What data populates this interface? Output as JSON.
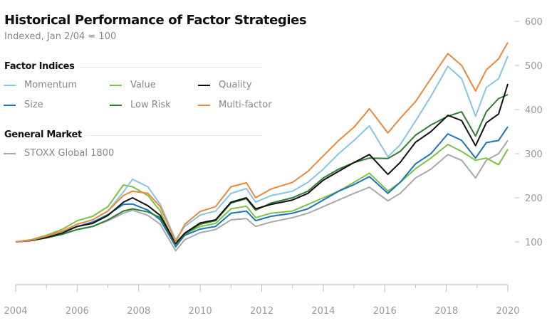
{
  "chart_data": {
    "type": "line",
    "title": "Historical Performance of Factor Strategies",
    "subtitle": "Indexed, Jan 2/04 = 100",
    "legend": {
      "placement": "top-left",
      "groups": [
        {
          "heading": "Factor Indices",
          "entries": [
            "Momentum",
            "Value",
            "Quality",
            "Size",
            "Low Risk",
            "Multi-factor"
          ]
        },
        {
          "heading": "General Market",
          "entries": [
            "STOXX Global 1800"
          ]
        }
      ]
    },
    "xlim": [
      2004,
      2020
    ],
    "ylim": [
      100,
      600
    ],
    "y_axis_side": "right",
    "grid": false,
    "x_ticks": [
      "2004",
      "2006",
      "2008",
      "2010",
      "2012",
      "2014",
      "2016",
      "2018",
      "2020"
    ],
    "y_ticks": [
      "100",
      "200",
      "300",
      "400",
      "500",
      "600"
    ],
    "x": [
      2004,
      2004.5,
      2005,
      2005.5,
      2006,
      2006.5,
      2007,
      2007.5,
      2007.8,
      2008.3,
      2008.7,
      2009.2,
      2009.5,
      2010,
      2010.5,
      2011,
      2011.5,
      2011.8,
      2012.3,
      2013,
      2013.5,
      2014,
      2014.5,
      2015,
      2015.5,
      2016.1,
      2016.5,
      2017,
      2017.5,
      2018.05,
      2018.5,
      2018.95,
      2019.3,
      2019.7,
      2020
    ],
    "series": [
      {
        "name": "STOXX Global 1800",
        "color": "#a9a9a9",
        "values": [
          100,
          103,
          110,
          118,
          128,
          135,
          148,
          165,
          172,
          160,
          140,
          80,
          105,
          121,
          128,
          150,
          153,
          135,
          145,
          155,
          165,
          180,
          195,
          210,
          224,
          193,
          210,
          245,
          265,
          298,
          285,
          245,
          285,
          300,
          330
        ]
      },
      {
        "name": "Value",
        "color": "#7dc242",
        "values": [
          100,
          105,
          115,
          128,
          148,
          158,
          180,
          229,
          225,
          205,
          170,
          88,
          118,
          135,
          142,
          175,
          181,
          155,
          165,
          170,
          185,
          200,
          215,
          235,
          256,
          215,
          235,
          266,
          290,
          321,
          305,
          285,
          290,
          275,
          310
        ]
      },
      {
        "name": "Size",
        "color": "#1b75bb",
        "values": [
          100,
          104,
          112,
          122,
          135,
          145,
          162,
          185,
          186,
          172,
          150,
          90,
          115,
          129,
          135,
          165,
          170,
          148,
          158,
          165,
          175,
          195,
          215,
          230,
          248,
          210,
          235,
          277,
          300,
          345,
          330,
          290,
          325,
          330,
          361
        ]
      },
      {
        "name": "Low Risk",
        "color": "#2e7d32",
        "values": [
          100,
          103,
          109,
          117,
          128,
          135,
          150,
          170,
          175,
          168,
          155,
          95,
          118,
          140,
          148,
          188,
          198,
          172,
          188,
          200,
          215,
          245,
          265,
          280,
          290,
          289,
          305,
          342,
          365,
          385,
          395,
          340,
          395,
          425,
          434
        ]
      },
      {
        "name": "Quality",
        "color": "#111111",
        "values": [
          100,
          103,
          110,
          120,
          135,
          142,
          160,
          190,
          200,
          182,
          160,
          97,
          120,
          143,
          150,
          190,
          200,
          175,
          185,
          195,
          210,
          240,
          260,
          280,
          298,
          253,
          280,
          326,
          350,
          387,
          375,
          318,
          370,
          390,
          458
        ]
      },
      {
        "name": "Momentum",
        "color": "#85c5e8",
        "values": [
          100,
          104,
          113,
          123,
          140,
          150,
          170,
          213,
          242,
          225,
          185,
          105,
          135,
          161,
          170,
          210,
          221,
          190,
          205,
          215,
          235,
          265,
          300,
          330,
          363,
          293,
          320,
          374,
          430,
          498,
          470,
          385,
          450,
          470,
          521
        ]
      },
      {
        "name": "Multi-factor",
        "color": "#e8893c",
        "values": [
          100,
          104,
          113,
          124,
          140,
          150,
          170,
          205,
          215,
          210,
          180,
          100,
          140,
          169,
          180,
          225,
          234,
          200,
          220,
          235,
          260,
          295,
          330,
          360,
          402,
          347,
          380,
          418,
          470,
          527,
          500,
          442,
          490,
          515,
          552
        ]
      }
    ]
  }
}
